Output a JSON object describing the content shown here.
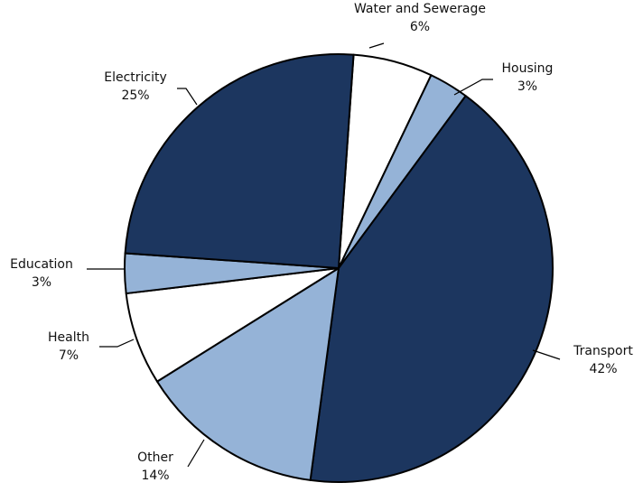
{
  "chart_data": {
    "type": "pie",
    "title": "",
    "slices": [
      {
        "label": "Water and Sewerage",
        "percent_label": "6%",
        "value": 6,
        "color": "#ffffff"
      },
      {
        "label": "Housing",
        "percent_label": "3%",
        "value": 3,
        "color": "#95b3d7"
      },
      {
        "label": "Transport",
        "percent_label": "42%",
        "value": 42,
        "color": "#1c365f"
      },
      {
        "label": "Other",
        "percent_label": "14%",
        "value": 14,
        "color": "#95b3d7"
      },
      {
        "label": "Health",
        "percent_label": "7%",
        "value": 7,
        "color": "#ffffff"
      },
      {
        "label": "Education",
        "percent_label": "3%",
        "value": 3,
        "color": "#95b3d7"
      },
      {
        "label": "Electricity",
        "percent_label": "25%",
        "value": 25,
        "color": "#1c365f"
      }
    ],
    "legend": "none",
    "data_labels": "outside with leader lines"
  }
}
